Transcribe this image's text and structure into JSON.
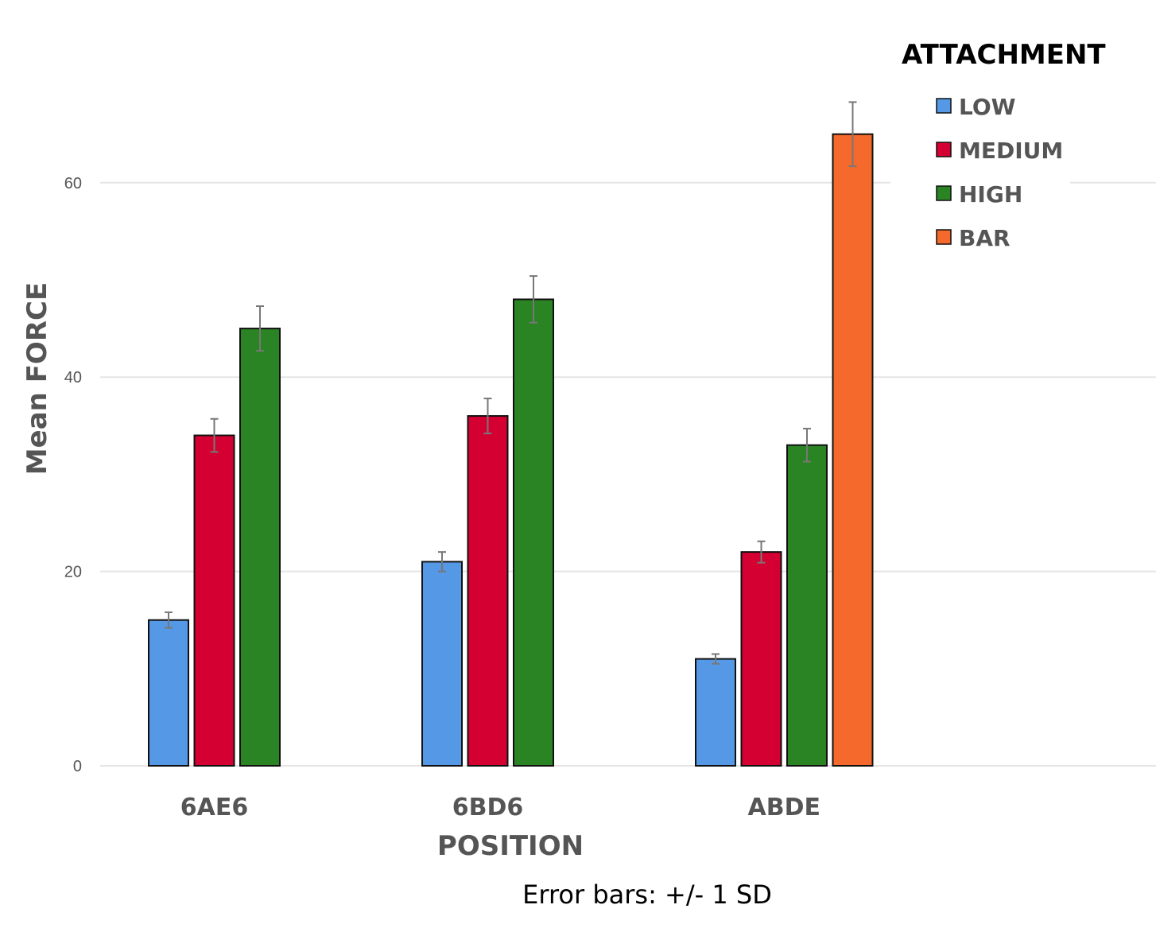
{
  "chart_data": {
    "type": "bar",
    "title": "",
    "xlabel": "POSITION",
    "ylabel": "Mean FORCE",
    "ylim": [
      0,
      70
    ],
    "yticks": [
      0,
      20,
      40,
      60
    ],
    "grid": true,
    "categories": [
      "6AE6",
      "6BD6",
      "ABDE"
    ],
    "legend": {
      "title": "ATTACHMENT",
      "placement": "top-right"
    },
    "series": [
      {
        "name": "LOW",
        "color": "#5599e6",
        "values": [
          15,
          21,
          11
        ],
        "errors": [
          0.8,
          1.0,
          0.5
        ]
      },
      {
        "name": "MEDIUM",
        "color": "#d50032",
        "values": [
          34,
          36,
          22
        ],
        "errors": [
          1.7,
          1.8,
          1.1
        ]
      },
      {
        "name": "HIGH",
        "color": "#2b8424",
        "values": [
          45,
          48,
          33
        ],
        "errors": [
          2.3,
          2.4,
          1.7
        ]
      },
      {
        "name": "BAR",
        "color": "#f5692c",
        "values": [
          null,
          null,
          65
        ],
        "errors": [
          null,
          null,
          3.3
        ]
      }
    ],
    "note": "Error bars: +/- 1 SD"
  }
}
